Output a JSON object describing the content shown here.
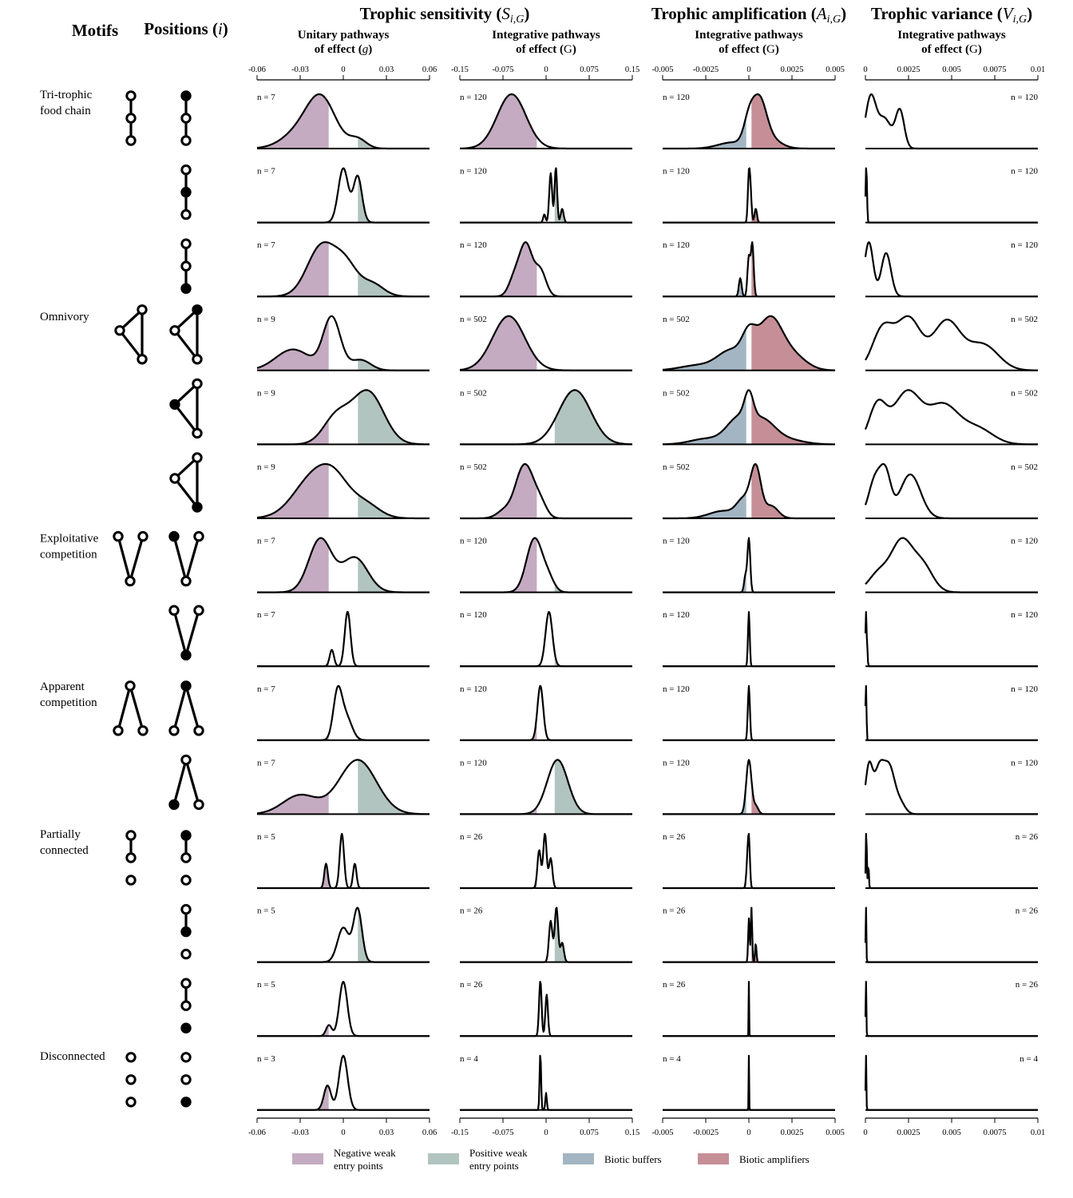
{
  "header": {
    "motifs_label": "Motifs",
    "positions_label": "Positions (",
    "positions_symbol": "i",
    "positions_close": ")"
  },
  "groups": [
    {
      "title": "Trophic sensitivity (",
      "symbol": "S",
      "subscript": "i,G",
      "close": ")"
    },
    {
      "title": "Trophic amplification (",
      "symbol": "A",
      "subscript": "i,G",
      "close": ")"
    },
    {
      "title": "Trophic variance (",
      "symbol": "V",
      "subscript": "i,G",
      "close": ")"
    }
  ],
  "panels": [
    {
      "line1": "Unitary pathways",
      "line2": "of effect (",
      "sym": "g",
      "close": ")",
      "ticks": [
        "-0.06",
        "-0.03",
        "0",
        "0.03",
        "0.06"
      ],
      "xlim": [
        -0.06,
        0.06
      ]
    },
    {
      "line1": "Integrative pathways",
      "line2": "of effect (",
      "sym": "G",
      "close": ")",
      "ticks": [
        "-0.15",
        "-0.075",
        "0",
        "0.075",
        "0.15"
      ],
      "xlim": [
        -0.15,
        0.15
      ]
    },
    {
      "line1": "Integrative pathways",
      "line2": "of effect (",
      "sym": "G",
      "close": ")",
      "ticks": [
        "-0.005",
        "-0.0025",
        "0",
        "0.0025",
        "0.005"
      ],
      "xlim": [
        -0.005,
        0.005
      ]
    },
    {
      "line1": "Integrative pathways",
      "line2": "of effect (",
      "sym": "G",
      "close": ")",
      "ticks": [
        "0",
        "0.0025",
        "0.005",
        "0.0075",
        "0.01"
      ],
      "xlim": [
        0,
        0.01
      ]
    }
  ],
  "motif_labels": [
    {
      "lines": [
        "Tri-trophic",
        "food chain"
      ]
    },
    {
      "lines": [
        "Omnivory"
      ]
    },
    {
      "lines": [
        "Exploitative",
        "competition"
      ]
    },
    {
      "lines": [
        "Apparent",
        "competition"
      ]
    },
    {
      "lines": [
        "Partially",
        "connected"
      ]
    },
    {
      "lines": [
        "Disconnected"
      ]
    }
  ],
  "legend": [
    {
      "lines": [
        "Negative weak",
        "entry points"
      ],
      "color": "#c4abc1"
    },
    {
      "lines": [
        "Positive weak",
        "entry points"
      ],
      "color": "#b2c4bf"
    },
    {
      "lines": [
        "Biotic buffers"
      ],
      "color": "#a3b5c2"
    },
    {
      "lines": [
        "Biotic amplifiers"
      ],
      "color": "#c68f98"
    }
  ],
  "colors": {
    "negative_weak": "#c4abc1",
    "positive_weak": "#b2c4bf",
    "buffers": "#a3b5c2",
    "amplifiers": "#c68f98"
  },
  "chart_data": {
    "type": "area",
    "description_units": "kernel density of values per position; shaded bands mark weak entry points (sensitivity) and buffers/amplifiers (amplification)",
    "rows": [
      {
        "motif": "Tri-trophic food chain",
        "n": [
          "n = 7",
          "n = 120",
          "n = 120",
          "n = 120"
        ],
        "unitary": [
          [
            -0.03,
            0.012,
            0.35
          ],
          [
            -0.015,
            0.01,
            1.0
          ],
          [
            0.01,
            0.006,
            0.2
          ]
        ],
        "sens": [
          [
            -0.06,
            0.025,
            1.0
          ]
        ],
        "amp": [
          [
            -0.001,
            0.0008,
            0.15
          ],
          [
            0,
            0.0003,
            0.55
          ],
          [
            0.0006,
            0.0004,
            1.0
          ],
          [
            0.001,
            0.0007,
            0.3
          ]
        ],
        "var": [
          [
            0.0003,
            0.0003,
            1.0
          ],
          [
            0.0011,
            0.0004,
            0.6
          ],
          [
            0.002,
            0.00025,
            0.75
          ]
        ]
      },
      {
        "n": [
          "n = 7",
          "n = 120",
          "n = 120",
          "n = 120"
        ],
        "unitary": [
          [
            0,
            0.0035,
            1.0
          ],
          [
            0.01,
            0.003,
            0.85
          ]
        ],
        "sens": [
          [
            0.008,
            0.0025,
            0.9
          ],
          [
            0.017,
            0.0022,
            1.0
          ],
          [
            0.028,
            0.0025,
            0.25
          ],
          [
            -0.003,
            0.002,
            0.15
          ]
        ],
        "amp": [
          [
            0,
            6e-05,
            1.0
          ],
          [
            0.0001,
            6e-05,
            0.6
          ],
          [
            0.0004,
            7e-05,
            0.3
          ]
        ],
        "var": [
          [
            5e-05,
            4e-05,
            1.0
          ]
        ]
      },
      {
        "n": [
          "n = 7",
          "n = 120",
          "n = 120",
          "n = 120"
        ],
        "unitary": [
          [
            -0.015,
            0.01,
            1.0
          ],
          [
            0.002,
            0.008,
            0.55
          ],
          [
            0.02,
            0.008,
            0.25
          ]
        ],
        "sens": [
          [
            -0.055,
            0.01,
            0.35
          ],
          [
            -0.035,
            0.011,
            1.0
          ],
          [
            -0.01,
            0.01,
            0.5
          ]
        ],
        "amp": [
          [
            -0.0005,
            8e-05,
            0.35
          ],
          [
            0,
            8e-05,
            0.75
          ],
          [
            0.0002,
            8e-05,
            1.0
          ]
        ],
        "var": [
          [
            0.0002,
            0.00025,
            1.0
          ],
          [
            0.0012,
            0.00028,
            0.8
          ]
        ]
      },
      {
        "motif": "Omnivory",
        "n": [
          "n = 9",
          "n = 502",
          "n = 502",
          "n = 502"
        ],
        "unitary": [
          [
            -0.035,
            0.012,
            0.4
          ],
          [
            -0.008,
            0.006,
            1.0
          ],
          [
            0.012,
            0.007,
            0.2
          ]
        ],
        "sens": [
          [
            -0.065,
            0.028,
            1.0
          ]
        ],
        "amp": [
          [
            -0.003,
            0.001,
            0.1
          ],
          [
            -0.001,
            0.0008,
            0.4
          ],
          [
            0,
            0.0004,
            0.5
          ],
          [
            0.0012,
            0.0007,
            1.0
          ],
          [
            0.0025,
            0.0008,
            0.3
          ]
        ],
        "var": [
          [
            0.001,
            0.0006,
            0.8
          ],
          [
            0.0025,
            0.0007,
            1.0
          ],
          [
            0.0047,
            0.0008,
            0.95
          ],
          [
            0.0068,
            0.0009,
            0.5
          ]
        ]
      },
      {
        "n": [
          "n = 9",
          "n = 502",
          "n = 502",
          "n = 502"
        ],
        "unitary": [
          [
            -0.005,
            0.009,
            0.5
          ],
          [
            0.017,
            0.011,
            1.0
          ]
        ],
        "sens": [
          [
            0.05,
            0.028,
            1.0
          ]
        ],
        "amp": [
          [
            -0.0025,
            0.0009,
            0.12
          ],
          [
            -0.0006,
            0.0007,
            0.55
          ],
          [
            0,
            0.00025,
            0.55
          ],
          [
            0.0008,
            0.0007,
            0.45
          ],
          [
            0.002,
            0.001,
            0.12
          ]
        ],
        "var": [
          [
            0.0007,
            0.0005,
            0.75
          ],
          [
            0.0024,
            0.0008,
            1.0
          ],
          [
            0.0045,
            0.0009,
            0.75
          ],
          [
            0.0065,
            0.0009,
            0.3
          ]
        ]
      },
      {
        "n": [
          "n = 9",
          "n = 502",
          "n = 502",
          "n = 502"
        ],
        "unitary": [
          [
            -0.02,
            0.014,
            0.9
          ],
          [
            -0.005,
            0.01,
            0.5
          ],
          [
            0.015,
            0.01,
            0.3
          ]
        ],
        "sens": [
          [
            -0.07,
            0.014,
            0.2
          ],
          [
            -0.045,
            0.012,
            0.7
          ],
          [
            -0.03,
            0.012,
            0.75
          ],
          [
            -0.01,
            0.011,
            0.35
          ]
        ],
        "amp": [
          [
            -0.0015,
            0.0008,
            0.15
          ],
          [
            -0.0003,
            0.0004,
            0.35
          ],
          [
            0.0004,
            0.0003,
            1.0
          ],
          [
            0.0013,
            0.0004,
            0.25
          ]
        ],
        "var": [
          [
            0.0006,
            0.0004,
            0.7
          ],
          [
            0.0012,
            0.0003,
            0.6
          ],
          [
            0.0026,
            0.0006,
            0.75
          ]
        ]
      },
      {
        "motif": "Exploitative competition",
        "n": [
          "n = 7",
          "n = 120",
          "n = 120",
          "n = 120"
        ],
        "unitary": [
          [
            -0.016,
            0.008,
            1.0
          ],
          [
            0.008,
            0.009,
            0.65
          ]
        ],
        "sens": [
          [
            -0.02,
            0.014,
            1.0
          ],
          [
            0.005,
            0.01,
            0.2
          ]
        ],
        "amp": [
          [
            -0.0002,
            8e-05,
            0.3
          ],
          [
            0,
            8e-05,
            1.0
          ]
        ],
        "var": [
          [
            0.0008,
            0.0006,
            0.4
          ],
          [
            0.0021,
            0.0006,
            1.0
          ],
          [
            0.0033,
            0.0006,
            0.55
          ]
        ]
      },
      {
        "n": [
          "n = 7",
          "n = 120",
          "n = 120",
          "n = 120"
        ],
        "unitary": [
          [
            -0.008,
            0.0015,
            0.3
          ],
          [
            0.003,
            0.002,
            1.0
          ]
        ],
        "sens": [
          [
            0.005,
            0.006,
            1.0
          ]
        ],
        "amp": [
          [
            0,
            5e-05,
            1.0
          ]
        ],
        "var": [
          [
            3e-05,
            3e-05,
            1.0
          ],
          [
            0.0001,
            3e-05,
            0.35
          ]
        ]
      },
      {
        "motif": "Apparent competition",
        "n": [
          "n = 7",
          "n = 120",
          "n = 120",
          "n = 120"
        ],
        "unitary": [
          [
            -0.004,
            0.003,
            1.0
          ],
          [
            0.002,
            0.004,
            0.5
          ]
        ],
        "sens": [
          [
            -0.01,
            0.005,
            1.0
          ]
        ],
        "amp": [
          [
            0,
            6e-05,
            1.0
          ]
        ],
        "var": [
          [
            3e-05,
            3e-05,
            1.0
          ]
        ]
      },
      {
        "n": [
          "n = 7",
          "n = 120",
          "n = 120",
          "n = 120"
        ],
        "unitary": [
          [
            -0.03,
            0.012,
            0.35
          ],
          [
            0.01,
            0.013,
            1.0
          ]
        ],
        "sens": [
          [
            0.02,
            0.018,
            1.0
          ]
        ],
        "amp": [
          [
            0,
            0.00015,
            1.0
          ],
          [
            0.0004,
            0.00015,
            0.15
          ]
        ],
        "var": [
          [
            0.0002,
            0.0002,
            0.8
          ],
          [
            0.0008,
            0.0003,
            0.8
          ],
          [
            0.0014,
            0.0003,
            0.75
          ],
          [
            0.002,
            0.0003,
            0.2
          ]
        ]
      },
      {
        "motif": "Partially connected",
        "n": [
          "n = 5",
          "n = 26",
          "n = 26",
          "n = 26"
        ],
        "unitary": [
          [
            -0.012,
            0.0012,
            0.45
          ],
          [
            -0.001,
            0.0015,
            1.0
          ],
          [
            0.008,
            0.0012,
            0.45
          ]
        ],
        "sens": [
          [
            -0.012,
            0.003,
            0.7
          ],
          [
            -0.002,
            0.003,
            1.0
          ],
          [
            0.008,
            0.003,
            0.55
          ]
        ],
        "amp": [
          [
            -0.0001,
            6e-05,
            0.4
          ],
          [
            0,
            6e-05,
            1.0
          ]
        ],
        "var": [
          [
            5e-05,
            3e-05,
            1.0
          ],
          [
            0.00017,
            3e-05,
            0.4
          ]
        ]
      },
      {
        "n": [
          "n = 5",
          "n = 26",
          "n = 26",
          "n = 26"
        ],
        "unitary": [
          [
            0,
            0.004,
            0.65
          ],
          [
            0.01,
            0.003,
            1.0
          ]
        ],
        "sens": [
          [
            0.008,
            0.003,
            0.75
          ],
          [
            0.018,
            0.003,
            1.0
          ],
          [
            0.028,
            0.003,
            0.35
          ]
        ],
        "amp": [
          [
            0,
            4e-05,
            0.8
          ],
          [
            0.00015,
            4e-05,
            1.0
          ],
          [
            0.0004,
            4e-05,
            0.35
          ]
        ],
        "var": [
          [
            3e-05,
            2e-05,
            1.0
          ]
        ]
      },
      {
        "n": [
          "n = 5",
          "n = 26",
          "n = 26",
          "n = 26"
        ],
        "unitary": [
          [
            -0.01,
            0.002,
            0.2
          ],
          [
            0,
            0.0028,
            1.0
          ]
        ],
        "sens": [
          [
            -0.01,
            0.0022,
            1.0
          ],
          [
            0.001,
            0.0022,
            0.75
          ]
        ],
        "amp": [
          [
            0,
            1.5e-05,
            1.0
          ]
        ],
        "var": [
          [
            3e-05,
            2e-05,
            1.0
          ]
        ]
      },
      {
        "motif": "Disconnected",
        "n": [
          "n = 3",
          "n = 4",
          "n = 4",
          "n = 4"
        ],
        "unitary": [
          [
            -0.011,
            0.0025,
            0.45
          ],
          [
            0,
            0.003,
            1.0
          ]
        ],
        "sens": [
          [
            -0.01,
            0.0013,
            1.0
          ],
          [
            0,
            0.0013,
            0.3
          ]
        ],
        "amp": [
          [
            0,
            1.5e-05,
            1.0
          ]
        ],
        "var": [
          [
            3e-05,
            2e-05,
            1.0
          ]
        ]
      }
    ]
  }
}
